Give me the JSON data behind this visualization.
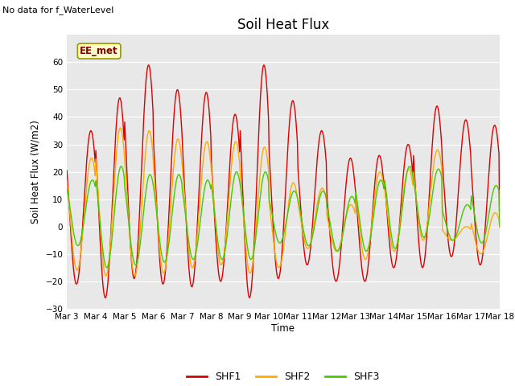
{
  "title": "Soil Heat Flux",
  "ylabel": "Soil Heat Flux (W/m2)",
  "xlabel": "Time",
  "top_left_text": "No data for f_WaterLevel",
  "box_label": "EE_met",
  "ylim": [
    -30,
    70
  ],
  "yticks": [
    -30,
    -20,
    -10,
    0,
    10,
    20,
    30,
    40,
    50,
    60
  ],
  "xtick_labels": [
    "Mar 3",
    "Mar 4",
    "Mar 5",
    "Mar 6",
    "Mar 7",
    "Mar 8",
    "Mar 9",
    "Mar 10",
    "Mar 11",
    "Mar 12",
    "Mar 13",
    "Mar 14",
    "Mar 15",
    "Mar 16",
    "Mar 17",
    "Mar 18"
  ],
  "color_shf1": "#dd0000",
  "color_shf2": "#ffaa00",
  "color_shf3": "#44cc00",
  "legend_labels": [
    "SHF1",
    "SHF2",
    "SHF3"
  ],
  "fig_bg_color": "#ffffff",
  "plot_bg_color": "#e8e8e8",
  "n_days": 15,
  "n_points_per_day": 48
}
